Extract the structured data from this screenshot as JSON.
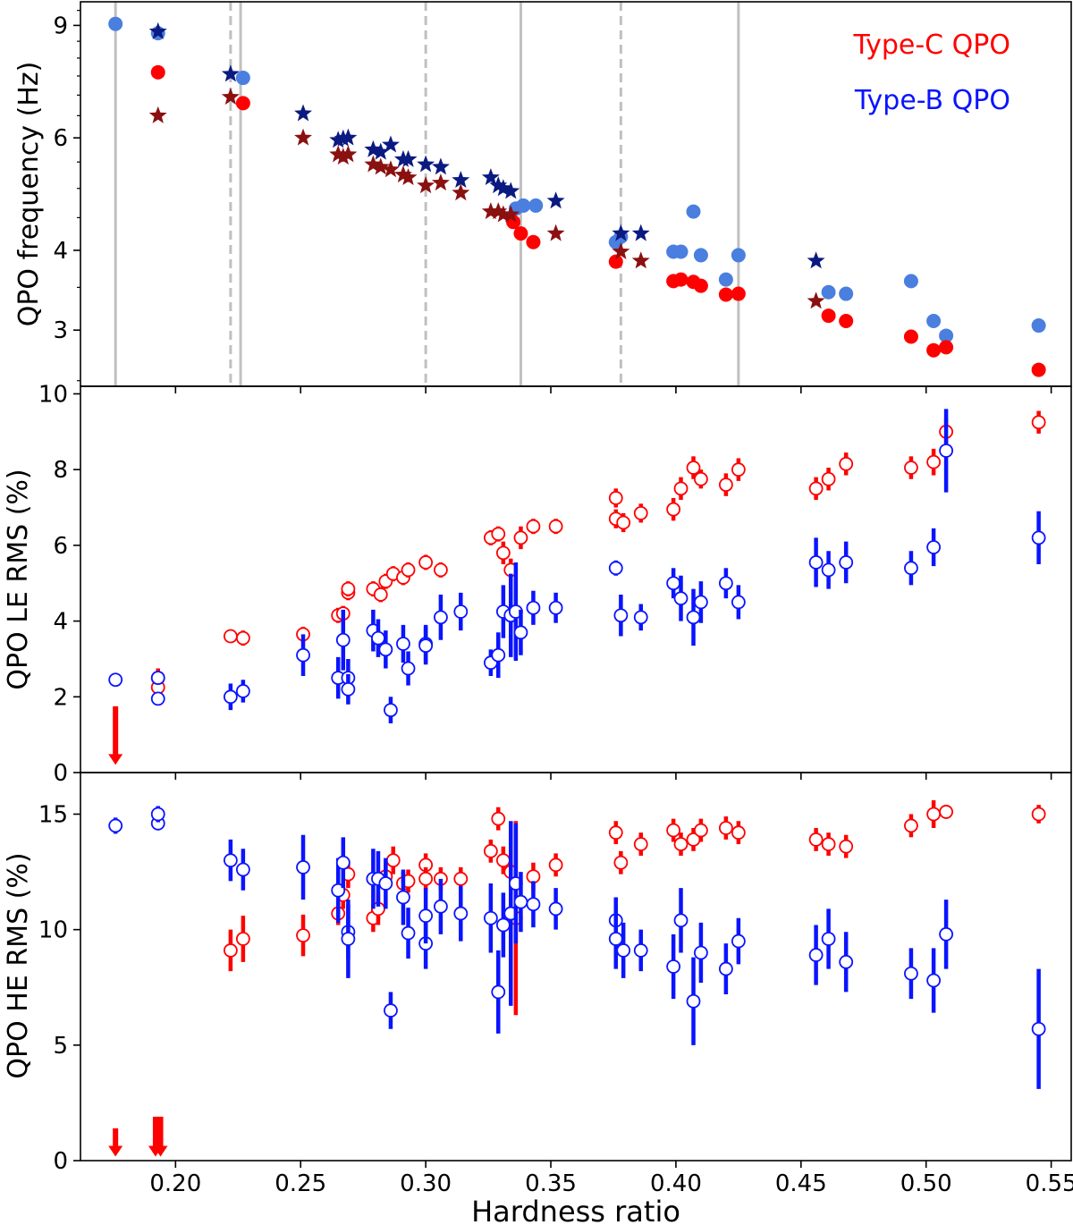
{
  "colors": {
    "typeC": "#ff0000",
    "typeB_circle": "#4a7fe0",
    "typeB_err": "#0a14ff",
    "star_dark_blue": "#0b1a80",
    "star_dark_red": "#8b1010",
    "vline": "#c0c0c0"
  },
  "chart_data": [
    {
      "type": "scatter",
      "panel": "top",
      "ylabel": "QPO frequency (Hz)",
      "yscale": "log",
      "ylim": [
        2.45,
        9.8
      ],
      "yticks": [
        3,
        4,
        6,
        9
      ],
      "ytick_labels": [
        "3",
        "4",
        "6",
        "9"
      ],
      "legend": [
        "Type-C QPO",
        "Type-B QPO"
      ],
      "legend_position": "top-right",
      "vlines_solid": [
        0.176,
        0.226,
        0.338,
        0.425
      ],
      "vlines_dashed": [
        0.222,
        0.3,
        0.378
      ],
      "series": [
        {
          "name": "Type-B QPO frequency",
          "marker": "circle",
          "color": "typeB_circle",
          "x": [
            0.176,
            0.193,
            0.227,
            0.336,
            0.339,
            0.344,
            0.376,
            0.378,
            0.399,
            0.402,
            0.407,
            0.41,
            0.42,
            0.425,
            0.461,
            0.468,
            0.494,
            0.503,
            0.508,
            0.545
          ],
          "y": [
            9.05,
            8.75,
            7.45,
            4.65,
            4.7,
            4.7,
            4.12,
            4.2,
            3.98,
            3.98,
            4.6,
            3.93,
            3.6,
            3.93,
            3.44,
            3.42,
            3.58,
            3.1,
            2.94,
            3.05
          ]
        },
        {
          "name": "Type-C QPO frequency",
          "marker": "circle",
          "color": "typeC",
          "x": [
            0.193,
            0.227,
            0.335,
            0.338,
            0.343,
            0.376,
            0.399,
            0.402,
            0.407,
            0.41,
            0.42,
            0.425,
            0.461,
            0.468,
            0.494,
            0.503,
            0.508,
            0.545
          ],
          "y": [
            7.6,
            6.8,
            4.43,
            4.25,
            4.12,
            3.84,
            3.58,
            3.6,
            3.57,
            3.52,
            3.41,
            3.42,
            3.16,
            3.1,
            2.93,
            2.79,
            2.82,
            2.6
          ]
        },
        {
          "name": "Type-B frequency (stars)",
          "marker": "star",
          "color": "star_dark_blue",
          "x": [
            0.193,
            0.222,
            0.251,
            0.265,
            0.267,
            0.269,
            0.279,
            0.282,
            0.286,
            0.291,
            0.293,
            0.3,
            0.306,
            0.314,
            0.326,
            0.329,
            0.331,
            0.334,
            0.352,
            0.378,
            0.386,
            0.456
          ],
          "y": [
            8.8,
            7.55,
            6.55,
            5.95,
            5.98,
            6.0,
            5.75,
            5.7,
            5.85,
            5.55,
            5.55,
            5.45,
            5.4,
            5.15,
            5.2,
            5.05,
            5.0,
            4.95,
            4.78,
            4.25,
            4.25,
            3.85
          ]
        },
        {
          "name": "Type-C frequency (stars)",
          "marker": "star",
          "color": "star_dark_red",
          "x": [
            0.193,
            0.222,
            0.251,
            0.265,
            0.267,
            0.269,
            0.279,
            0.282,
            0.286,
            0.291,
            0.293,
            0.3,
            0.306,
            0.314,
            0.326,
            0.329,
            0.331,
            0.334,
            0.352,
            0.378,
            0.386,
            0.456
          ],
          "y": [
            6.5,
            6.95,
            6.0,
            5.65,
            5.6,
            5.65,
            5.45,
            5.4,
            5.35,
            5.25,
            5.2,
            5.05,
            5.1,
            4.92,
            4.6,
            4.6,
            4.55,
            4.55,
            4.25,
            3.98,
            3.85,
            3.33
          ]
        }
      ]
    },
    {
      "type": "scatter",
      "panel": "middle",
      "ylabel": "QPO LE RMS (%)",
      "ylim": [
        0,
        10.2
      ],
      "yticks": [
        0,
        2,
        4,
        6,
        8,
        10
      ],
      "ytick_labels": [
        "0",
        "2",
        "4",
        "6",
        "8",
        "10"
      ],
      "upper_limits": [
        {
          "x": 0.176,
          "y": 1.75,
          "to": 0.25,
          "color": "typeC"
        }
      ],
      "series": [
        {
          "name": "Type-C LE RMS",
          "marker": "open-circle",
          "color": "typeC",
          "x": [
            0.193,
            0.193,
            0.222,
            0.227,
            0.251,
            0.265,
            0.267,
            0.269,
            0.269,
            0.279,
            0.282,
            0.284,
            0.287,
            0.291,
            0.293,
            0.3,
            0.306,
            0.326,
            0.329,
            0.331,
            0.334,
            0.338,
            0.343,
            0.352,
            0.376,
            0.376,
            0.379,
            0.386,
            0.399,
            0.402,
            0.407,
            0.41,
            0.42,
            0.425,
            0.456,
            0.461,
            0.468,
            0.494,
            0.503,
            0.508,
            0.545
          ],
          "y": [
            2.5,
            2.25,
            3.6,
            3.55,
            3.65,
            4.15,
            4.2,
            4.75,
            4.85,
            4.85,
            4.7,
            5.05,
            5.25,
            5.15,
            5.35,
            5.55,
            5.35,
            6.2,
            6.3,
            5.8,
            5.35,
            6.2,
            6.5,
            6.5,
            7.25,
            6.7,
            6.6,
            6.85,
            6.95,
            7.5,
            8.05,
            7.75,
            7.6,
            8.0,
            7.5,
            7.75,
            8.15,
            8.05,
            8.2,
            9.0,
            9.25
          ],
          "err": [
            0.25,
            0.25,
            0.15,
            0.2,
            0.2,
            0.2,
            0.2,
            0.2,
            0.2,
            0.2,
            0.2,
            0.2,
            0.2,
            0.2,
            0.2,
            0.2,
            0.2,
            0.2,
            0.2,
            0.3,
            0.3,
            0.3,
            0.2,
            0.2,
            0.25,
            0.25,
            0.25,
            0.25,
            0.3,
            0.3,
            0.3,
            0.25,
            0.3,
            0.3,
            0.3,
            0.3,
            0.3,
            0.3,
            0.35,
            0.35,
            0.3
          ]
        },
        {
          "name": "Type-B LE RMS",
          "marker": "open-circle",
          "color": "typeB_err",
          "x": [
            0.176,
            0.193,
            0.193,
            0.222,
            0.227,
            0.251,
            0.265,
            0.267,
            0.269,
            0.269,
            0.279,
            0.281,
            0.284,
            0.286,
            0.291,
            0.293,
            0.3,
            0.3,
            0.306,
            0.314,
            0.326,
            0.329,
            0.331,
            0.334,
            0.336,
            0.338,
            0.343,
            0.352,
            0.376,
            0.378,
            0.386,
            0.399,
            0.402,
            0.407,
            0.41,
            0.42,
            0.425,
            0.456,
            0.461,
            0.468,
            0.494,
            0.503,
            0.508,
            0.545
          ],
          "y": [
            2.45,
            2.5,
            1.95,
            2.0,
            2.15,
            3.1,
            2.5,
            3.5,
            2.5,
            2.2,
            3.75,
            3.55,
            3.25,
            1.65,
            3.4,
            2.75,
            3.4,
            3.35,
            4.1,
            4.25,
            2.9,
            3.1,
            4.25,
            4.15,
            4.25,
            3.7,
            4.35,
            4.35,
            5.4,
            4.15,
            4.1,
            5.0,
            4.6,
            4.1,
            4.5,
            5.0,
            4.5,
            5.55,
            5.35,
            5.55,
            5.4,
            5.95,
            8.5,
            6.2
          ],
          "err": [
            0.05,
            0.15,
            0.1,
            0.35,
            0.3,
            0.55,
            0.55,
            0.8,
            0.5,
            0.4,
            0.55,
            0.5,
            0.5,
            0.35,
            0.5,
            0.45,
            0.5,
            0.5,
            0.6,
            0.5,
            0.35,
            0.6,
            0.7,
            1.1,
            1.3,
            0.6,
            0.45,
            0.4,
            0.2,
            0.55,
            0.35,
            0.4,
            0.6,
            0.75,
            0.55,
            0.4,
            0.45,
            0.65,
            0.5,
            0.55,
            0.45,
            0.5,
            1.1,
            0.7
          ]
        }
      ]
    },
    {
      "type": "scatter",
      "panel": "bottom",
      "ylabel": "QPO HE RMS (%)",
      "xlabel": "Hardness ratio",
      "xlim": [
        0.162,
        0.558
      ],
      "xticks": [
        0.2,
        0.25,
        0.3,
        0.35,
        0.4,
        0.45,
        0.5,
        0.55
      ],
      "xtick_labels": [
        "0.20",
        "0.25",
        "0.30",
        "0.35",
        "0.40",
        "0.45",
        "0.50",
        "0.55"
      ],
      "ylim": [
        0,
        16.8
      ],
      "yticks": [
        0,
        5,
        10,
        15
      ],
      "ytick_labels": [
        "0",
        "5",
        "10",
        "15"
      ],
      "upper_limits": [
        {
          "x": 0.176,
          "y": 1.4,
          "to": 0.25,
          "color": "typeC"
        },
        {
          "x": 0.192,
          "y": 1.9,
          "to": 0.25,
          "color": "typeC"
        },
        {
          "x": 0.194,
          "y": 1.9,
          "to": 0.25,
          "color": "typeC"
        }
      ],
      "series": [
        {
          "name": "Type-C HE RMS",
          "marker": "open-circle",
          "color": "typeC",
          "x": [
            0.222,
            0.227,
            0.251,
            0.265,
            0.267,
            0.269,
            0.279,
            0.281,
            0.284,
            0.287,
            0.291,
            0.293,
            0.3,
            0.3,
            0.306,
            0.314,
            0.326,
            0.329,
            0.331,
            0.334,
            0.336,
            0.343,
            0.352,
            0.376,
            0.378,
            0.386,
            0.399,
            0.402,
            0.407,
            0.41,
            0.42,
            0.425,
            0.456,
            0.461,
            0.468,
            0.494,
            0.503,
            0.508,
            0.545
          ],
          "y": [
            9.1,
            9.6,
            9.75,
            10.7,
            11.5,
            12.4,
            10.5,
            10.9,
            12.3,
            13.0,
            12.0,
            12.1,
            12.8,
            12.2,
            12.2,
            12.2,
            13.4,
            14.8,
            13.0,
            12.5,
            10.5,
            12.3,
            12.8,
            14.2,
            12.9,
            13.7,
            14.3,
            13.7,
            13.9,
            14.3,
            14.4,
            14.2,
            13.9,
            13.7,
            13.6,
            14.5,
            15.0,
            15.1,
            15.0
          ],
          "err": [
            0.9,
            1.0,
            0.9,
            0.5,
            0.6,
            0.6,
            0.6,
            0.7,
            0.6,
            0.6,
            0.5,
            0.5,
            0.5,
            0.5,
            0.5,
            0.5,
            0.5,
            0.5,
            0.6,
            0.6,
            4.2,
            0.6,
            0.5,
            0.5,
            0.5,
            0.5,
            0.5,
            0.5,
            0.5,
            0.5,
            0.5,
            0.5,
            0.5,
            0.5,
            0.5,
            0.5,
            0.6,
            0.3,
            0.4
          ]
        },
        {
          "name": "Type-B HE RMS",
          "marker": "open-circle",
          "color": "typeB_err",
          "x": [
            0.176,
            0.193,
            0.193,
            0.222,
            0.227,
            0.251,
            0.265,
            0.267,
            0.269,
            0.269,
            0.279,
            0.281,
            0.284,
            0.286,
            0.291,
            0.293,
            0.3,
            0.3,
            0.306,
            0.314,
            0.326,
            0.329,
            0.331,
            0.334,
            0.336,
            0.338,
            0.343,
            0.352,
            0.376,
            0.376,
            0.379,
            0.386,
            0.399,
            0.402,
            0.407,
            0.41,
            0.42,
            0.425,
            0.456,
            0.461,
            0.468,
            0.494,
            0.503,
            0.508,
            0.545
          ],
          "y": [
            14.5,
            14.6,
            15.0,
            13.0,
            12.6,
            12.7,
            11.7,
            12.9,
            9.9,
            9.6,
            12.2,
            12.2,
            12.0,
            6.5,
            11.4,
            9.85,
            9.4,
            10.6,
            11.0,
            10.7,
            10.5,
            7.3,
            10.2,
            10.7,
            12.0,
            11.2,
            11.1,
            10.9,
            10.4,
            9.6,
            9.1,
            9.1,
            8.4,
            10.4,
            6.9,
            9.0,
            8.3,
            9.5,
            8.9,
            9.6,
            8.6,
            8.1,
            7.8,
            9.8,
            5.7
          ],
          "err": [
            0.35,
            0.3,
            0.35,
            0.9,
            0.9,
            1.4,
            1.4,
            1.1,
            1.2,
            1.7,
            1.3,
            1.2,
            1.1,
            0.8,
            1.2,
            1.1,
            1.1,
            1.2,
            1.2,
            1.2,
            1.5,
            1.8,
            1.4,
            4.0,
            2.6,
            1.3,
            1.0,
            0.9,
            1.0,
            1.3,
            1.2,
            0.9,
            1.4,
            1.4,
            1.9,
            1.3,
            1.1,
            1.0,
            1.3,
            1.3,
            1.3,
            1.1,
            1.4,
            1.5,
            2.6
          ]
        }
      ]
    }
  ]
}
